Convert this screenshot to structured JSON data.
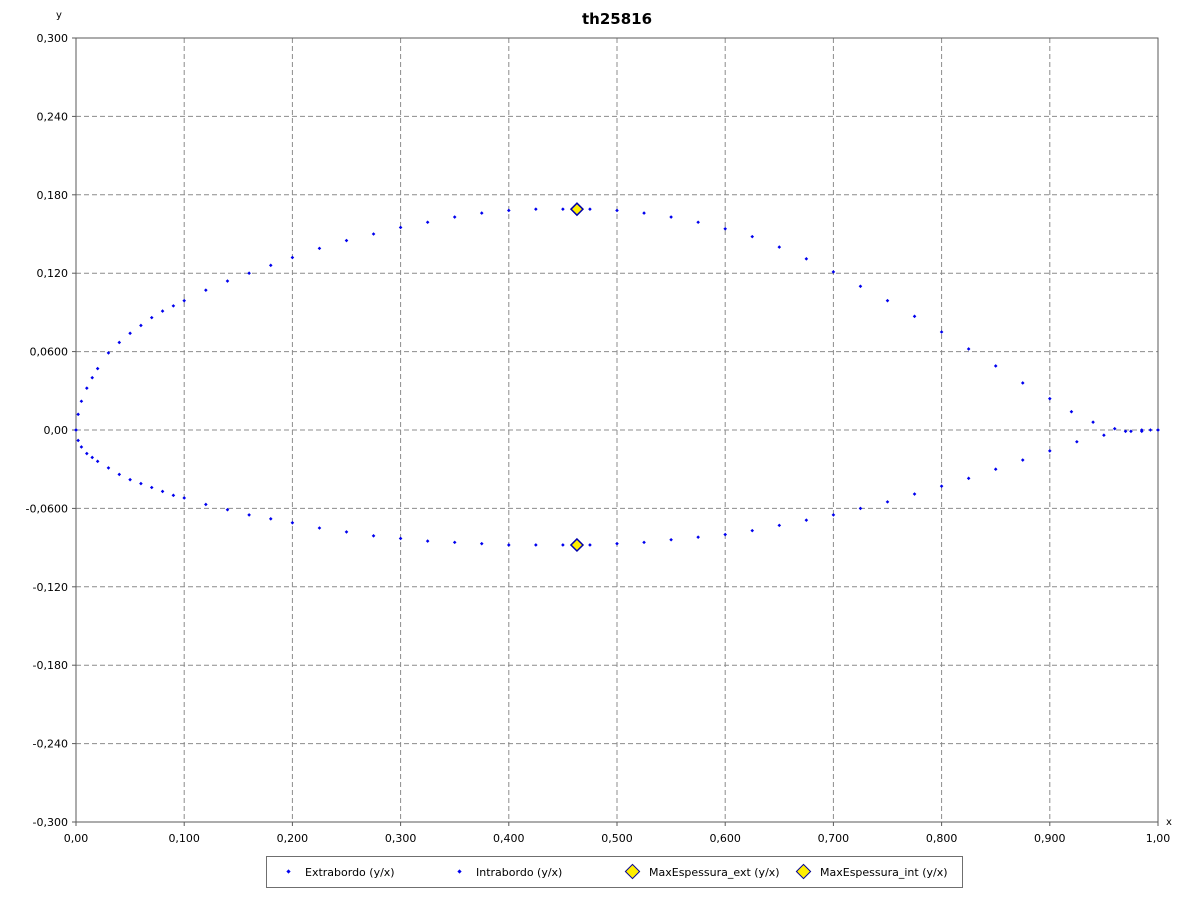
{
  "chart_data": {
    "type": "scatter",
    "title": "th25816",
    "xlabel": "x",
    "ylabel": "y",
    "xlim": [
      0.0,
      1.0
    ],
    "ylim": [
      -0.3,
      0.3
    ],
    "grid": true,
    "legend_position": "bottom",
    "x_ticks": [
      "0,00",
      "0,100",
      "0,200",
      "0,300",
      "0,400",
      "0,500",
      "0,600",
      "0,700",
      "0,800",
      "0,900",
      "1,00"
    ],
    "y_ticks": [
      "-0,300",
      "-0,240",
      "-0,180",
      "-0,120",
      "-0,0600",
      "0,00",
      "0,0600",
      "0,120",
      "0,180",
      "0,240",
      "0,300"
    ],
    "series": [
      {
        "name": "Extrabordo (y/x)",
        "color": "#0000ee",
        "marker": "small-diamond",
        "x": [
          0.0,
          0.002,
          0.005,
          0.01,
          0.015,
          0.02,
          0.03,
          0.04,
          0.05,
          0.06,
          0.07,
          0.08,
          0.09,
          0.1,
          0.12,
          0.14,
          0.16,
          0.18,
          0.2,
          0.225,
          0.25,
          0.275,
          0.3,
          0.325,
          0.35,
          0.375,
          0.4,
          0.425,
          0.45,
          0.463,
          0.475,
          0.5,
          0.525,
          0.55,
          0.575,
          0.6,
          0.625,
          0.65,
          0.675,
          0.7,
          0.725,
          0.75,
          0.775,
          0.8,
          0.825,
          0.85,
          0.875,
          0.9,
          0.92,
          0.94,
          0.96,
          0.975,
          0.985,
          0.993,
          1.0
        ],
        "y": [
          0.0,
          0.012,
          0.022,
          0.032,
          0.04,
          0.047,
          0.059,
          0.067,
          0.074,
          0.08,
          0.086,
          0.091,
          0.095,
          0.099,
          0.107,
          0.114,
          0.12,
          0.126,
          0.132,
          0.139,
          0.145,
          0.15,
          0.155,
          0.159,
          0.163,
          0.166,
          0.168,
          0.169,
          0.169,
          0.169,
          0.169,
          0.168,
          0.166,
          0.163,
          0.159,
          0.154,
          0.148,
          0.14,
          0.131,
          0.121,
          0.11,
          0.099,
          0.087,
          0.075,
          0.062,
          0.049,
          0.036,
          0.024,
          0.014,
          0.006,
          0.001,
          -0.001,
          -0.001,
          0.0,
          0.0
        ]
      },
      {
        "name": "Intrabordo (y/x)",
        "color": "#0000ee",
        "marker": "small-diamond",
        "x": [
          0.0,
          0.002,
          0.005,
          0.01,
          0.015,
          0.02,
          0.03,
          0.04,
          0.05,
          0.06,
          0.07,
          0.08,
          0.09,
          0.1,
          0.12,
          0.14,
          0.16,
          0.18,
          0.2,
          0.225,
          0.25,
          0.275,
          0.3,
          0.325,
          0.35,
          0.375,
          0.4,
          0.425,
          0.45,
          0.463,
          0.475,
          0.5,
          0.525,
          0.55,
          0.575,
          0.6,
          0.625,
          0.65,
          0.675,
          0.7,
          0.725,
          0.75,
          0.775,
          0.8,
          0.825,
          0.85,
          0.875,
          0.9,
          0.925,
          0.95,
          0.97,
          0.985,
          1.0
        ],
        "y": [
          0.0,
          -0.008,
          -0.013,
          -0.018,
          -0.021,
          -0.024,
          -0.029,
          -0.034,
          -0.038,
          -0.041,
          -0.044,
          -0.047,
          -0.05,
          -0.052,
          -0.057,
          -0.061,
          -0.065,
          -0.068,
          -0.071,
          -0.075,
          -0.078,
          -0.081,
          -0.083,
          -0.085,
          -0.086,
          -0.087,
          -0.088,
          -0.088,
          -0.088,
          -0.088,
          -0.088,
          -0.087,
          -0.086,
          -0.084,
          -0.082,
          -0.08,
          -0.077,
          -0.073,
          -0.069,
          -0.065,
          -0.06,
          -0.055,
          -0.049,
          -0.043,
          -0.037,
          -0.03,
          -0.023,
          -0.016,
          -0.009,
          -0.004,
          -0.001,
          0.0,
          0.0
        ]
      },
      {
        "name": "MaxEspessura_ext (y/x)",
        "color": "#ffee00",
        "marker": "diamond",
        "x": [
          0.463
        ],
        "y": [
          0.169
        ]
      },
      {
        "name": "MaxEspessura_int (y/x)",
        "color": "#ffee00",
        "marker": "diamond",
        "x": [
          0.463
        ],
        "y": [
          -0.088
        ]
      }
    ]
  }
}
